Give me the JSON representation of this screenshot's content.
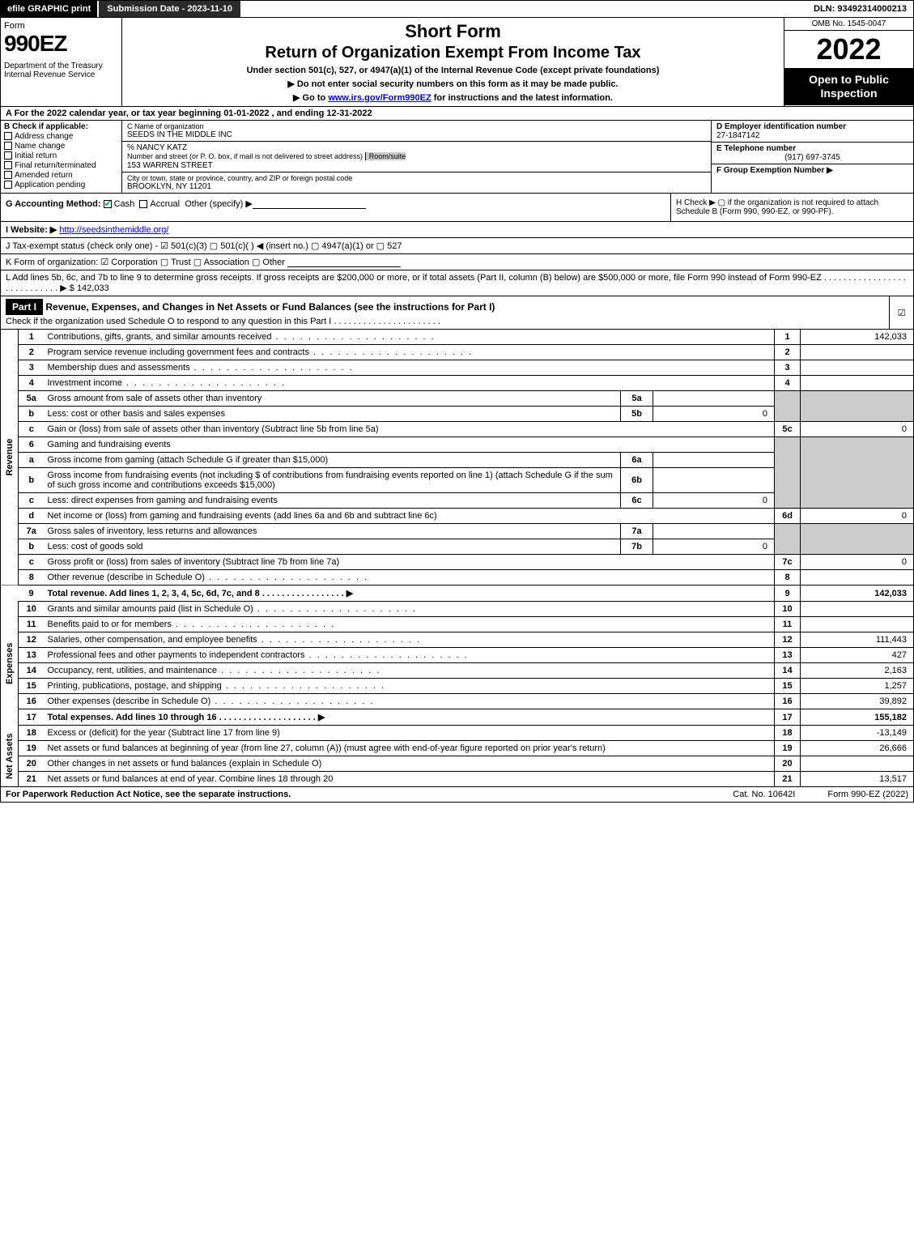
{
  "topbar": {
    "efile": "efile GRAPHIC print",
    "sub_date_label": "Submission Date - 2023-11-10",
    "dln": "DLN: 93492314000213"
  },
  "header": {
    "form_word": "Form",
    "form_num": "990EZ",
    "dept": "Department of the Treasury\nInternal Revenue Service",
    "title1": "Short Form",
    "title2": "Return of Organization Exempt From Income Tax",
    "sub1": "Under section 501(c), 527, or 4947(a)(1) of the Internal Revenue Code (except private foundations)",
    "sub2": "▶ Do not enter social security numbers on this form as it may be made public.",
    "sub3_pre": "▶ Go to ",
    "sub3_link": "www.irs.gov/Form990EZ",
    "sub3_post": " for instructions and the latest information.",
    "omb": "OMB No. 1545-0047",
    "year": "2022",
    "inspect": "Open to Public Inspection"
  },
  "row_a": "A  For the 2022 calendar year, or tax year beginning 01-01-2022 , and ending 12-31-2022",
  "col_b": {
    "hdr": "B  Check if applicable:",
    "opts": [
      "Address change",
      "Name change",
      "Initial return",
      "Final return/terminated",
      "Amended return",
      "Application pending"
    ]
  },
  "col_c": {
    "name_lbl": "C Name of organization",
    "name": "SEEDS IN THE MIDDLE INC",
    "care_of": "% NANCY KATZ",
    "street_lbl": "Number and street (or P. O. box, if mail is not delivered to street address)",
    "street": "153 WARREN STREET",
    "room_lbl": "Room/suite",
    "city_lbl": "City or town, state or province, country, and ZIP or foreign postal code",
    "city": "BROOKLYN, NY  11201"
  },
  "col_d": {
    "ein_lbl": "D Employer identification number",
    "ein": "27-1847142",
    "tel_lbl": "E Telephone number",
    "tel": "(917) 697-3745",
    "grp_lbl": "F Group Exemption Number  ▶"
  },
  "row_g": {
    "label": "G Accounting Method:",
    "cash": "Cash",
    "accrual": "Accrual",
    "other": "Other (specify) ▶"
  },
  "row_h": "H  Check ▶  ▢  if the organization is not required to attach Schedule B (Form 990, 990-EZ, or 990-PF).",
  "row_i": {
    "label": "I Website: ▶",
    "url": "http://seedsinthemiddle.org/"
  },
  "row_j": "J Tax-exempt status (check only one) - ☑ 501(c)(3)  ▢ 501(c)(  ) ◀ (insert no.)  ▢ 4947(a)(1) or  ▢ 527",
  "row_k": "K Form of organization:  ☑ Corporation  ▢ Trust  ▢ Association  ▢ Other",
  "row_l": {
    "text": "L Add lines 5b, 6c, and 7b to line 9 to determine gross receipts. If gross receipts are $200,000 or more, or if total assets (Part II, column (B) below) are $500,000 or more, file Form 990 instead of Form 990-EZ  .  .  .  .  .  .  .  .  .  .  .  .  .  .  .  .  .  .  .  .  .  .  .  .  .  .  .  .  ▶ $",
    "amount": "142,033"
  },
  "part1": {
    "hdr": "Part I",
    "title": "Revenue, Expenses, and Changes in Net Assets or Fund Balances (see the instructions for Part I)",
    "sub": "Check if the organization used Schedule O to respond to any question in this Part I  .  .  .  .  .  .  .  .  .  .  .  .  .  .  .  .  .  .  .  .  .  .",
    "checked": "☑"
  },
  "sections": {
    "revenue_label": "Revenue",
    "expenses_label": "Expenses",
    "netassets_label": "Net Assets"
  },
  "lines": {
    "l1": {
      "num": "1",
      "desc": "Contributions, gifts, grants, and similar amounts received",
      "ln": "1",
      "amt": "142,033"
    },
    "l2": {
      "num": "2",
      "desc": "Program service revenue including government fees and contracts",
      "ln": "2",
      "amt": ""
    },
    "l3": {
      "num": "3",
      "desc": "Membership dues and assessments",
      "ln": "3",
      "amt": ""
    },
    "l4": {
      "num": "4",
      "desc": "Investment income",
      "ln": "4",
      "amt": ""
    },
    "l5a": {
      "num": "5a",
      "desc": "Gross amount from sale of assets other than inventory",
      "sub": "5a",
      "subval": ""
    },
    "l5b": {
      "num": "b",
      "desc": "Less: cost or other basis and sales expenses",
      "sub": "5b",
      "subval": "0"
    },
    "l5c": {
      "num": "c",
      "desc": "Gain or (loss) from sale of assets other than inventory (Subtract line 5b from line 5a)",
      "ln": "5c",
      "amt": "0"
    },
    "l6": {
      "num": "6",
      "desc": "Gaming and fundraising events"
    },
    "l6a": {
      "num": "a",
      "desc": "Gross income from gaming (attach Schedule G if greater than $15,000)",
      "sub": "6a",
      "subval": ""
    },
    "l6b": {
      "num": "b",
      "desc": "Gross income from fundraising events (not including $                    of contributions from fundraising events reported on line 1) (attach Schedule G if the sum of such gross income and contributions exceeds $15,000)",
      "sub": "6b",
      "subval": ""
    },
    "l6c": {
      "num": "c",
      "desc": "Less: direct expenses from gaming and fundraising events",
      "sub": "6c",
      "subval": "0"
    },
    "l6d": {
      "num": "d",
      "desc": "Net income or (loss) from gaming and fundraising events (add lines 6a and 6b and subtract line 6c)",
      "ln": "6d",
      "amt": "0"
    },
    "l7a": {
      "num": "7a",
      "desc": "Gross sales of inventory, less returns and allowances",
      "sub": "7a",
      "subval": ""
    },
    "l7b": {
      "num": "b",
      "desc": "Less: cost of goods sold",
      "sub": "7b",
      "subval": "0"
    },
    "l7c": {
      "num": "c",
      "desc": "Gross profit or (loss) from sales of inventory (Subtract line 7b from line 7a)",
      "ln": "7c",
      "amt": "0"
    },
    "l8": {
      "num": "8",
      "desc": "Other revenue (describe in Schedule O)",
      "ln": "8",
      "amt": ""
    },
    "l9": {
      "num": "9",
      "desc": "Total revenue. Add lines 1, 2, 3, 4, 5c, 6d, 7c, and 8  .  .  .  .  .  .  .  .  .  .  .  .  .  .  .  .  .  ▶",
      "ln": "9",
      "amt": "142,033"
    },
    "l10": {
      "num": "10",
      "desc": "Grants and similar amounts paid (list in Schedule O)",
      "ln": "10",
      "amt": ""
    },
    "l11": {
      "num": "11",
      "desc": "Benefits paid to or for members",
      "ln": "11",
      "amt": ""
    },
    "l12": {
      "num": "12",
      "desc": "Salaries, other compensation, and employee benefits",
      "ln": "12",
      "amt": "111,443"
    },
    "l13": {
      "num": "13",
      "desc": "Professional fees and other payments to independent contractors",
      "ln": "13",
      "amt": "427"
    },
    "l14": {
      "num": "14",
      "desc": "Occupancy, rent, utilities, and maintenance",
      "ln": "14",
      "amt": "2,163"
    },
    "l15": {
      "num": "15",
      "desc": "Printing, publications, postage, and shipping",
      "ln": "15",
      "amt": "1,257"
    },
    "l16": {
      "num": "16",
      "desc": "Other expenses (describe in Schedule O)",
      "ln": "16",
      "amt": "39,892"
    },
    "l17": {
      "num": "17",
      "desc": "Total expenses. Add lines 10 through 16  .  .  .  .  .  .  .  .  .  .  .  .  .  .  .  .  .  .  .  .  ▶",
      "ln": "17",
      "amt": "155,182"
    },
    "l18": {
      "num": "18",
      "desc": "Excess or (deficit) for the year (Subtract line 17 from line 9)",
      "ln": "18",
      "amt": "-13,149"
    },
    "l19": {
      "num": "19",
      "desc": "Net assets or fund balances at beginning of year (from line 27, column (A)) (must agree with end-of-year figure reported on prior year's return)",
      "ln": "19",
      "amt": "26,666"
    },
    "l20": {
      "num": "20",
      "desc": "Other changes in net assets or fund balances (explain in Schedule O)",
      "ln": "20",
      "amt": ""
    },
    "l21": {
      "num": "21",
      "desc": "Net assets or fund balances at end of year. Combine lines 18 through 20",
      "ln": "21",
      "amt": "13,517"
    }
  },
  "footer": {
    "left": "For Paperwork Reduction Act Notice, see the separate instructions.",
    "center": "Cat. No. 10642I",
    "right": "Form 990-EZ (2022)"
  }
}
